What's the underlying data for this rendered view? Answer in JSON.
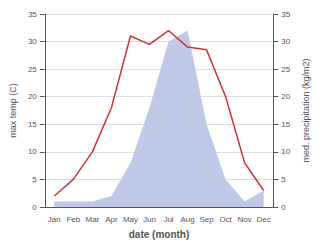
{
  "chart_data": {
    "type": "line",
    "categories": [
      "Jan",
      "Feb",
      "Mar",
      "Apr",
      "May",
      "Jun",
      "Jul",
      "Aug",
      "Sep",
      "Oct",
      "Nov",
      "Dec"
    ],
    "series": [
      {
        "type": "area",
        "axis": "y2",
        "color": "#c0c8e8",
        "values": [
          1,
          1,
          1,
          2,
          8,
          18,
          30,
          32,
          15,
          5,
          1,
          3
        ]
      },
      {
        "type": "line",
        "axis": "y",
        "color": "#cc3333",
        "values": [
          2,
          5,
          10,
          18,
          31,
          29.5,
          32,
          29,
          28.5,
          20,
          8,
          3
        ]
      }
    ],
    "xlabel": "date (month)",
    "ylabel": "max temp (C)",
    "y2label": "med. precipitation (kg/m2)",
    "ylim": [
      0,
      35
    ],
    "yticks": [
      0,
      5,
      10,
      15,
      20,
      25,
      30,
      35
    ],
    "y2lim": [
      0,
      35
    ],
    "y2ticks": [
      0,
      5,
      10,
      15,
      20,
      25,
      30,
      35
    ],
    "grid": true
  }
}
